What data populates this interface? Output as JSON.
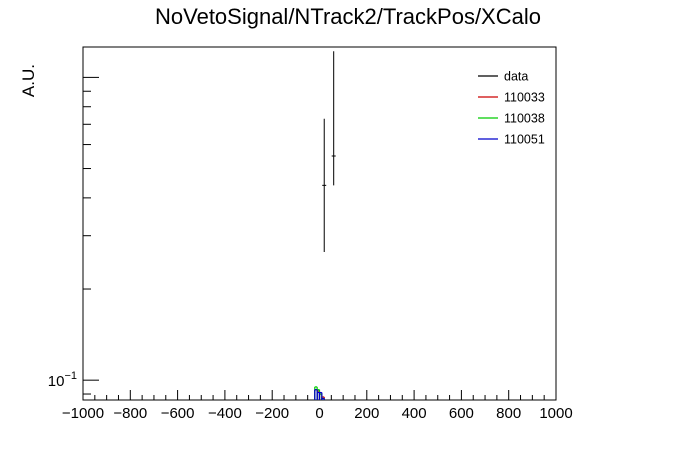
{
  "chart_data": {
    "type": "histogram",
    "title": "NoVetoSignal/NTrack2/TrackPos/XCalo",
    "xlabel": "",
    "ylabel": "A.U.",
    "xlim": [
      -1000,
      1000
    ],
    "ylim": [
      0.086,
      1.26
    ],
    "y_scale": "log",
    "x_ticks": [
      "−1000",
      "−800",
      "−600",
      "−400",
      "−200",
      "0",
      "200",
      "400",
      "600",
      "800",
      "1000"
    ],
    "y_tick_label": "10−1",
    "legend": {
      "placement": "top-right",
      "frame": false
    },
    "series": [
      {
        "name": "data",
        "color": "#000000",
        "bins": [
          {
            "x0": 0,
            "x1": 40,
            "y": 0.44,
            "err_lo": 0.265,
            "err_hi": 0.73
          },
          {
            "x0": 40,
            "x1": 80,
            "y": 0.55,
            "err_lo": 0.44,
            "err_hi": 1.22
          }
        ]
      },
      {
        "name": "110033",
        "color": "#cc0000",
        "bins": [
          {
            "x0": -20,
            "x1": -10,
            "y": 0.093
          },
          {
            "x0": -10,
            "x1": 0,
            "y": 0.092
          },
          {
            "x0": 0,
            "x1": 10,
            "y": 0.09
          },
          {
            "x0": 10,
            "x1": 20,
            "y": 0.088
          }
        ]
      },
      {
        "name": "110038",
        "color": "#00cc00",
        "bins": [
          {
            "x0": -20,
            "x1": -10,
            "y": 0.095
          },
          {
            "x0": -10,
            "x1": 0,
            "y": 0.093
          },
          {
            "x0": 0,
            "x1": 10,
            "y": 0.09
          },
          {
            "x0": 10,
            "x1": 20,
            "y": 0.087
          }
        ]
      },
      {
        "name": "110051",
        "color": "#0000cc",
        "bins": [
          {
            "x0": -20,
            "x1": -10,
            "y": 0.093
          },
          {
            "x0": -10,
            "x1": 0,
            "y": 0.091
          },
          {
            "x0": 0,
            "x1": 10,
            "y": 0.091
          },
          {
            "x0": 10,
            "x1": 20,
            "y": 0.087
          }
        ]
      }
    ]
  }
}
